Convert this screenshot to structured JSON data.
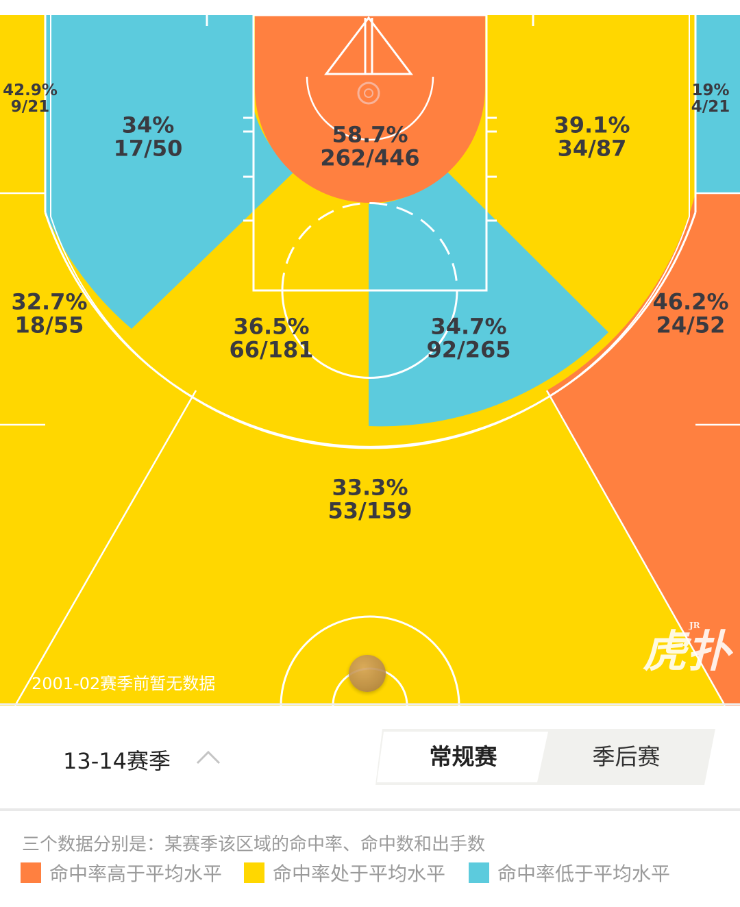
{
  "court": {
    "colors": {
      "above_average": "#FF8040",
      "average": "#FFD700",
      "below_average": "#5CCBDD",
      "lines": "#ffffff"
    },
    "zones": [
      {
        "id": "left-corner-three",
        "pct": "42.9%",
        "made_att": "9/21",
        "rating": "average"
      },
      {
        "id": "left-midrange-baseline",
        "pct": "34%",
        "made_att": "17/50",
        "rating": "below_average"
      },
      {
        "id": "restricted-area",
        "pct": "58.7%",
        "made_att": "262/446",
        "rating": "above_average"
      },
      {
        "id": "right-midrange-baseline",
        "pct": "39.1%",
        "made_att": "34/87",
        "rating": "average"
      },
      {
        "id": "right-corner-three",
        "pct": "19%",
        "made_att": "4/21",
        "rating": "below_average"
      },
      {
        "id": "left-wing-three",
        "pct": "32.7%",
        "made_att": "18/55",
        "rating": "average"
      },
      {
        "id": "left-paint-midrange",
        "pct": "36.5%",
        "made_att": "66/181",
        "rating": "average"
      },
      {
        "id": "right-paint-midrange",
        "pct": "34.7%",
        "made_att": "92/265",
        "rating": "below_average"
      },
      {
        "id": "right-wing-three",
        "pct": "46.2%",
        "made_att": "24/52",
        "rating": "above_average"
      },
      {
        "id": "top-key-three",
        "pct": "33.3%",
        "made_att": "53/159",
        "rating": "average"
      }
    ],
    "note": "2001-02赛季前暂无数据",
    "watermark": "虎扑",
    "watermark_small": "JR"
  },
  "controls": {
    "season": "13-14赛季",
    "season_icon": "chevron-up-icon",
    "tabs": [
      {
        "label": "常规赛",
        "active": true
      },
      {
        "label": "季后赛",
        "active": false
      }
    ]
  },
  "legend": {
    "description": "三个数据分别是：某赛季该区域的命中率、命中数和出手数",
    "items": [
      {
        "label": "命中率高于平均水平",
        "color": "#FF8040"
      },
      {
        "label": "命中率处于平均水平",
        "color": "#FFD700"
      },
      {
        "label": "命中率低于平均水平",
        "color": "#5CCBDD"
      }
    ]
  }
}
